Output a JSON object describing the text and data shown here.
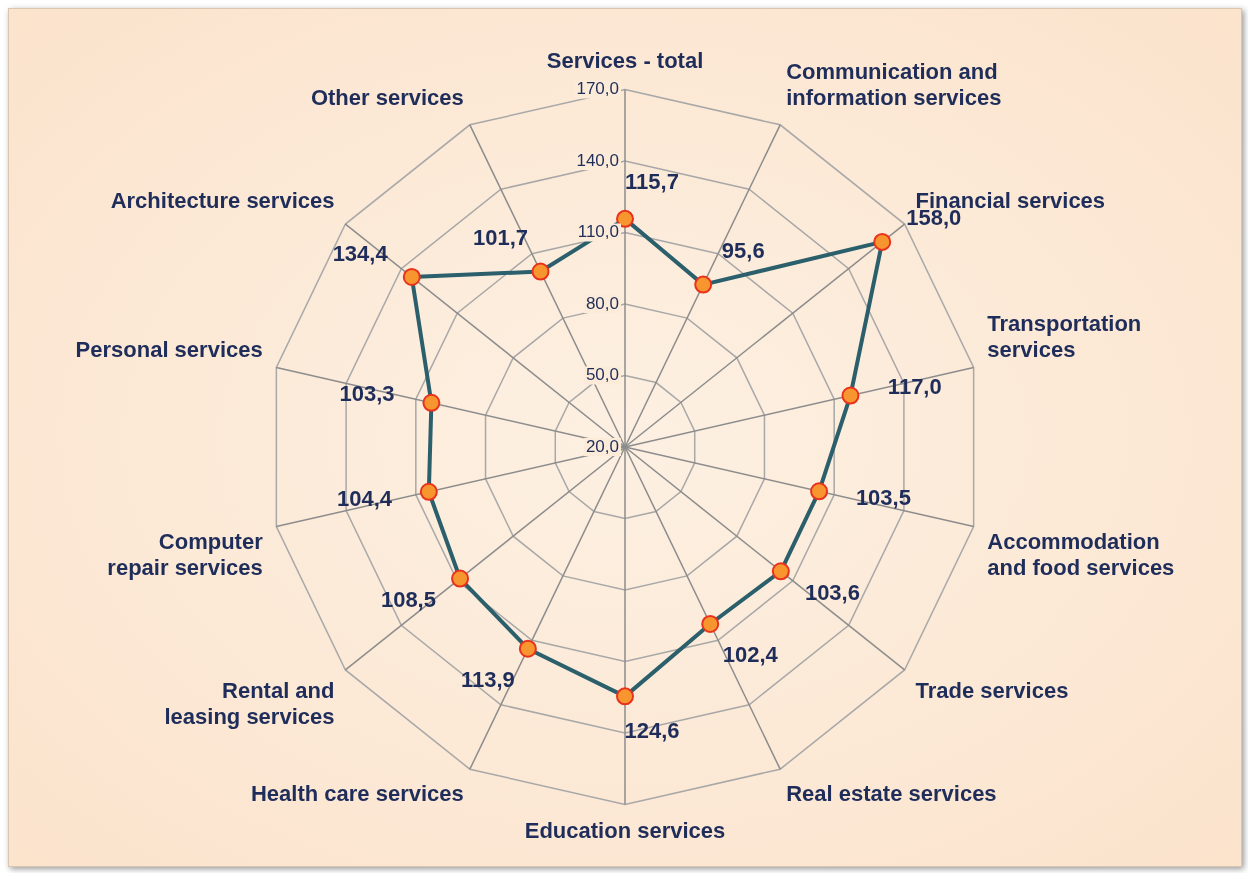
{
  "chart_data": {
    "type": "radar",
    "categories": [
      "Services - total",
      "Communication and information services",
      "Financial services",
      "Transportation services",
      "Accommodation and food services",
      "Trade services",
      "Real estate services",
      "Education services",
      "Health care services",
      "Rental and leasing services",
      "Computer repair services",
      "Personal services",
      "Architecture services",
      "Other services"
    ],
    "series": [
      {
        "color": "#2b5f6b",
        "values": [
          115.7,
          95.6,
          158.0,
          117.0,
          103.5,
          103.6,
          102.4,
          124.6,
          113.9,
          108.5,
          104.4,
          103.3,
          134.4,
          101.7
        ],
        "value_labels": [
          "115,7",
          "95,6",
          "158,0",
          "117,0",
          "103,5",
          "103,6",
          "102,4",
          "124,6",
          "113,9",
          "108,5",
          "104,4",
          "103,3",
          "134,4",
          "101,7"
        ]
      }
    ],
    "ylim": [
      20,
      170
    ],
    "yticks": [
      {
        "value": 20,
        "label": "20,0"
      },
      {
        "value": 50,
        "label": "50,0"
      },
      {
        "value": 80,
        "label": "80,0"
      },
      {
        "value": 110,
        "label": "110,0"
      },
      {
        "value": 140,
        "label": "140,0"
      },
      {
        "value": 170,
        "label": "170,0"
      }
    ],
    "grid": true,
    "marker": "circle"
  }
}
